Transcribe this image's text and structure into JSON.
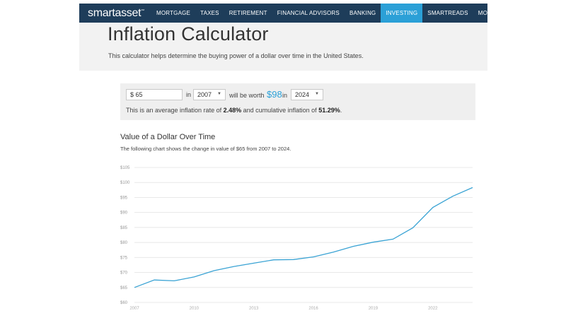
{
  "nav": {
    "logo": "smartasset",
    "logo_mark": "™",
    "items": [
      {
        "label": "MORTGAGE"
      },
      {
        "label": "TAXES"
      },
      {
        "label": "RETIREMENT"
      },
      {
        "label": "FINANCIAL ADVISORS"
      },
      {
        "label": "BANKING"
      },
      {
        "label": "INVESTING"
      },
      {
        "label": "SMARTREADS"
      },
      {
        "label": "MORE"
      }
    ],
    "active_item": "INVESTING",
    "more_chevron": "⌄",
    "colors": {
      "bar": "#1e3d5a",
      "active": "#2ba0d7"
    }
  },
  "page": {
    "title": "Inflation Calculator",
    "subtitle": "This calculator helps determine the buying power of a dollar over time in the United States."
  },
  "calculator": {
    "amount": "$ 65",
    "in_label": "in",
    "from_year": "2007",
    "worth_label": "will be worth",
    "worth_value": "$98",
    "in_label_2": "in",
    "to_year": "2024",
    "select_caret": "▼",
    "rate_prefix": "This is an average inflation rate of ",
    "avg_rate": "2.48%",
    "rate_middle": " and cumulative inflation of ",
    "cumulative": "51.29%",
    "rate_suffix": "."
  },
  "chart": {
    "title": "Value of a Dollar Over Time",
    "description": "The following chart shows the change in value of $65 from 2007 to 2024."
  },
  "chart_data": {
    "type": "line",
    "title": "Value of a Dollar Over Time",
    "xlabel": "",
    "ylabel": "",
    "x": [
      2007,
      2008,
      2009,
      2010,
      2011,
      2012,
      2013,
      2014,
      2015,
      2016,
      2017,
      2018,
      2019,
      2020,
      2021,
      2022,
      2023,
      2024
    ],
    "values": [
      65,
      67.5,
      67.2,
      68.5,
      70.6,
      72.0,
      73.1,
      74.2,
      74.3,
      75.2,
      76.8,
      78.7,
      80.1,
      81.1,
      84.9,
      91.7,
      95.4,
      98.3
    ],
    "y_ticks": [
      "$60",
      "$65",
      "$70",
      "$75",
      "$80",
      "$85",
      "$90",
      "$95",
      "$100",
      "$105"
    ],
    "x_tick_labels": [
      "2007",
      "2010",
      "2013",
      "2016",
      "2019",
      "2022"
    ],
    "ylim": [
      60,
      105
    ],
    "xlim": [
      2007,
      2024
    ],
    "grid": true,
    "line_color": "#3aa3d4"
  }
}
